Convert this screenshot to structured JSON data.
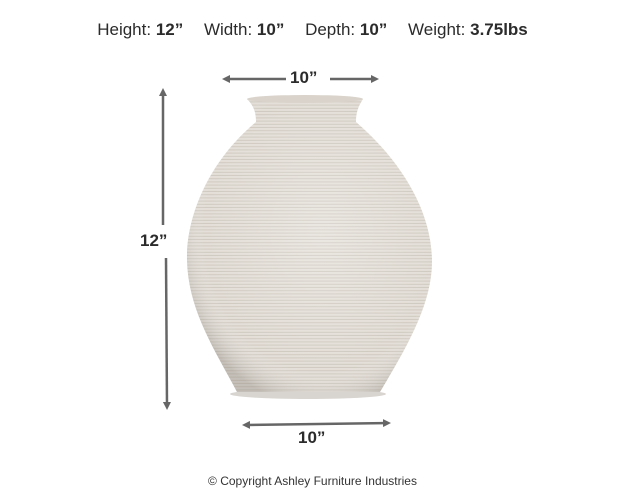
{
  "specs": [
    {
      "label": "Height:",
      "value": "12”"
    },
    {
      "label": "Width:",
      "value": "10”"
    },
    {
      "label": "Depth:",
      "value": "10”"
    },
    {
      "label": "Weight:",
      "value": "3.75lbs"
    }
  ],
  "dimensions": {
    "top_width": "10”",
    "height": "12”",
    "bottom_width": "10”"
  },
  "product": {
    "icon": "ribbed-ceramic-vase-image"
  },
  "colors": {
    "vase": "#e2ddd6",
    "arrow": "#666666",
    "text": "#2b2b2b"
  },
  "copyright": "© Copyright Ashley Furniture Industries"
}
